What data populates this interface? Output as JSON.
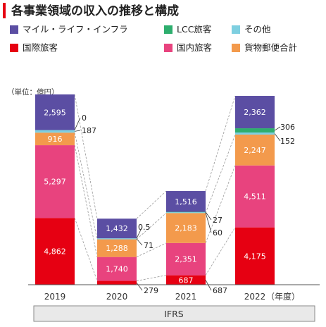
{
  "chart_data": {
    "type": "bar",
    "stacked": true,
    "title": "各事業領域の収入の推移と構成",
    "unit": "（単位：億円）",
    "xlabel_suffix": "（年度）",
    "footer_label": "IFRS",
    "categories": [
      "2019",
      "2020",
      "2021",
      "2022"
    ],
    "series": [
      {
        "name": "国際旅客",
        "color": "#e60012",
        "values": [
          4862,
          279,
          687,
          4175
        ]
      },
      {
        "name": "国内旅客",
        "color": "#e8437e",
        "values": [
          5297,
          1740,
          2351,
          4511
        ]
      },
      {
        "name": "貨物郵便合計",
        "color": "#f39a4c",
        "values": [
          916,
          1288,
          2183,
          2247
        ]
      },
      {
        "name": "その他",
        "color": "#7ecfe0",
        "values": [
          187,
          71,
          60,
          152
        ]
      },
      {
        "name": "LCC旅客",
        "color": "#2eae6e",
        "values": [
          0,
          0.5,
          27,
          306
        ]
      },
      {
        "name": "マイル・ライフ・インフラ",
        "color": "#5b4ea3",
        "values": [
          2595,
          1432,
          1516,
          2362
        ]
      }
    ],
    "labels": {
      "国際旅客": [
        "4,862",
        "279",
        "687",
        "4,175"
      ],
      "国内旅客": [
        "5,297",
        "1,740",
        "2,351",
        "4,511"
      ],
      "貨物郵便合計": [
        "916",
        "1,288",
        "2,183",
        "2,247"
      ],
      "その他": [
        "187",
        "71",
        "60",
        "152"
      ],
      "LCC旅客": [
        "0",
        "0.5",
        "27",
        "306"
      ],
      "マイル・ライフ・インフラ": [
        "2,595",
        "1,432",
        "1,516",
        "2,362"
      ]
    },
    "legend_order": [
      "マイル・ライフ・インフラ",
      "LCC旅客",
      "その他",
      "国際旅客",
      "国内旅客",
      "貨物郵便合計"
    ]
  }
}
